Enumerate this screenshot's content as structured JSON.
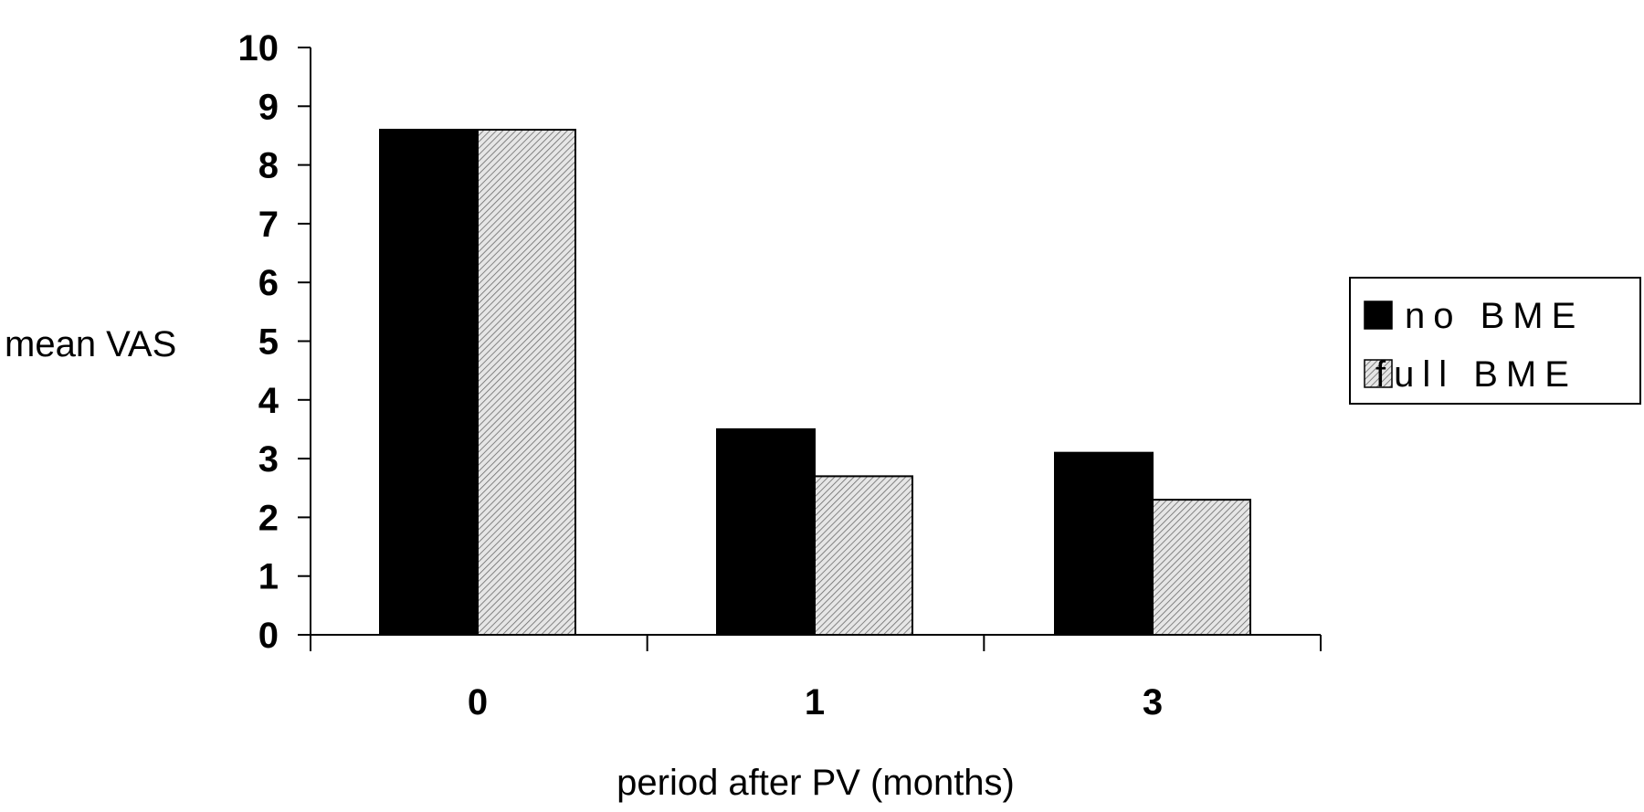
{
  "chart_data": {
    "type": "bar",
    "categories": [
      "0",
      "1",
      "3"
    ],
    "series": [
      {
        "name": "no BME",
        "values": [
          8.6,
          3.5,
          3.1
        ],
        "color": "#000000",
        "fill": "solid"
      },
      {
        "name": "full BME",
        "values": [
          8.6,
          2.7,
          2.3
        ],
        "color": "#d8d8d8",
        "fill": "hatched"
      }
    ],
    "xlabel": "period after PV (months)",
    "ylabel": "mean VAS",
    "ylim": [
      0,
      10
    ],
    "yticks": [
      "0",
      "1",
      "2",
      "3",
      "4",
      "5",
      "6",
      "7",
      "8",
      "9",
      "10"
    ],
    "legend": {
      "position": "right"
    },
    "grid": false
  }
}
